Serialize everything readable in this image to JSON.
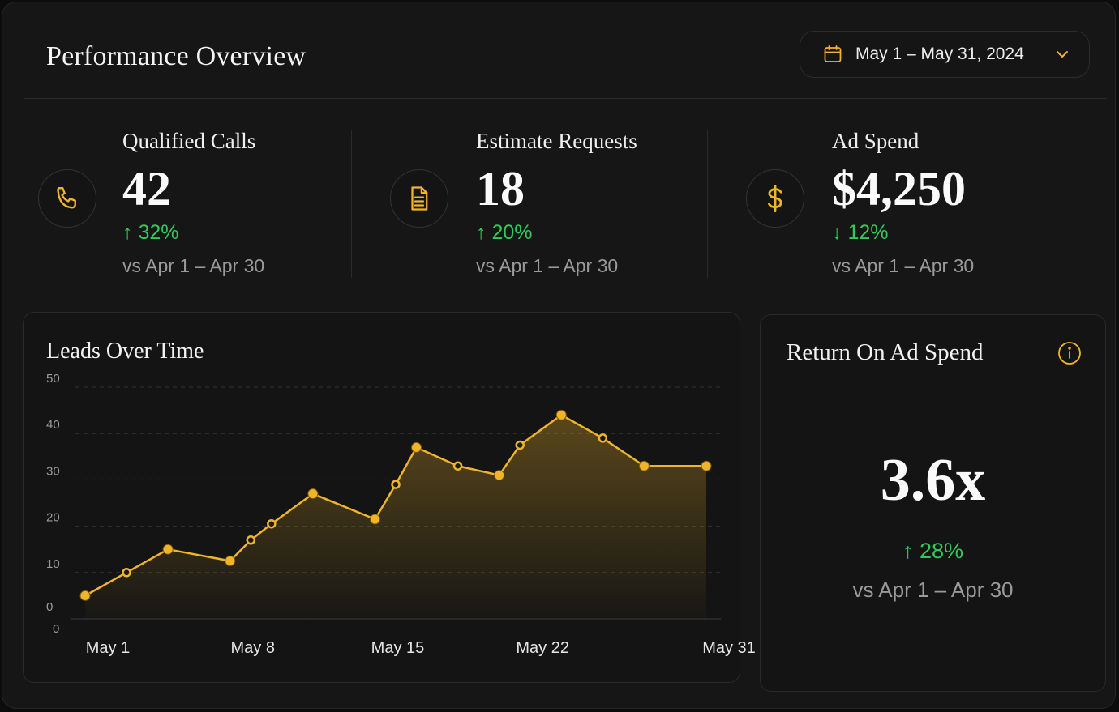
{
  "header": {
    "title": "Performance Overview",
    "date_range": "May 1 – May 31, 2024",
    "calendar_icon": "calendar-icon",
    "dropdown_icon": "chevron-down-icon"
  },
  "kpis": [
    {
      "title": "Qualified Calls",
      "value": "42",
      "delta_arrow": "↑",
      "delta": "32%",
      "compare": "vs Apr 1 – Apr 30",
      "icon": "phone-icon"
    },
    {
      "title": "Estimate Requests",
      "value": "18",
      "delta_arrow": "↑",
      "delta": "20%",
      "compare": "vs Apr 1 – Apr 30",
      "icon": "document-icon"
    },
    {
      "title": "Ad Spend",
      "value": "$4,250",
      "delta_arrow": "↓",
      "delta": "12%",
      "compare": "vs Apr 1 – Apr 30",
      "icon": "dollar-icon"
    }
  ],
  "roas": {
    "title": "Return On Ad Spend",
    "value": "3.6x",
    "delta_arrow": "↑",
    "delta": "28%",
    "compare": "vs Apr 1 – Apr 30",
    "info_icon": "info-icon"
  },
  "colors": {
    "accent": "#f0b429",
    "positive": "#32c95a",
    "background": "#161616"
  },
  "chart_data": {
    "type": "area",
    "title": "Leads Over Time",
    "xlabel": "",
    "ylabel": "",
    "ylim": [
      0,
      50
    ],
    "yticks": [
      "50",
      "40",
      "30",
      "20",
      "10",
      "0"
    ],
    "extra_ytick": "0",
    "xticks": [
      "May 1",
      "May 8",
      "May 15",
      "May 22",
      "May 31"
    ],
    "grid": true,
    "x": [
      "May 1",
      "May 3",
      "May 5",
      "May 8",
      "May 9",
      "May 10",
      "May 12",
      "May 15",
      "May 16",
      "May 17",
      "May 19",
      "May 21",
      "May 22",
      "May 24",
      "May 26",
      "May 28",
      "May 31"
    ],
    "values": [
      5,
      10,
      15,
      12.5,
      17,
      20.5,
      27,
      21.5,
      29,
      37,
      33,
      31,
      37.5,
      44,
      39,
      33,
      33
    ],
    "marker_style": [
      "filled",
      "ring",
      "filled",
      "filled",
      "ring",
      "ring",
      "filled",
      "filled",
      "ring",
      "filled",
      "ring",
      "filled",
      "ring",
      "filled",
      "ring",
      "filled",
      "filled"
    ]
  }
}
